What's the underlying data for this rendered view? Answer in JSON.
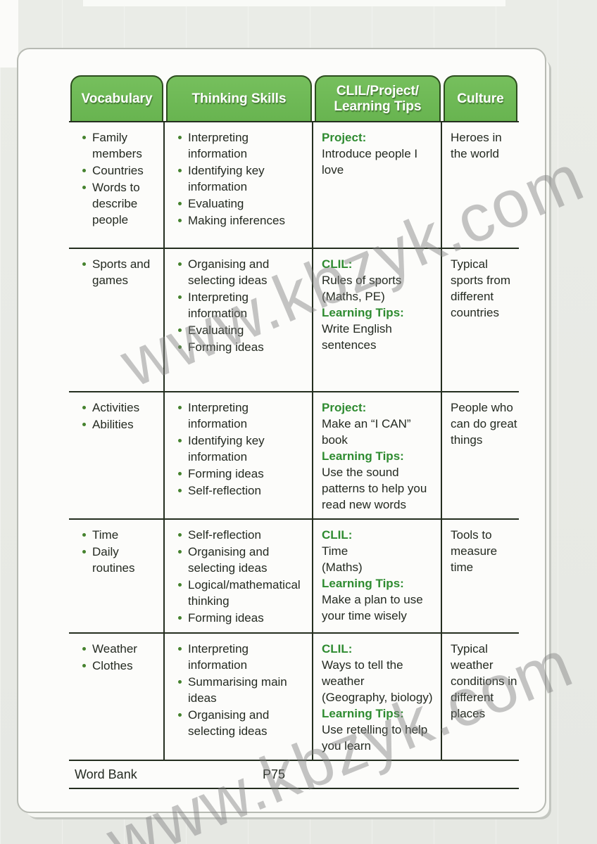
{
  "document": {
    "watermark_text": "www.kbzyk.com",
    "footer": {
      "word_bank_label": "Word Bank",
      "page_number": "P75"
    }
  },
  "colors": {
    "tab_green": "#68b450",
    "tab_green_light": "#76bf5d",
    "tab_border": "#2c4c1e",
    "label_green": "#2e8b30",
    "bullet_green": "#45822e",
    "line_dark": "#242e1f",
    "ink": "#242a21"
  },
  "table": {
    "columns": [
      "vocabulary",
      "thinking-skills",
      "clil-project-learning-tips",
      "culture"
    ],
    "headers": [
      {
        "lines": [
          "Vocabulary"
        ]
      },
      {
        "lines": [
          "Thinking Skills"
        ]
      },
      {
        "lines": [
          "CLIL/Project/",
          "Learning Tips"
        ]
      },
      {
        "lines": [
          "Culture"
        ]
      }
    ],
    "rows": [
      {
        "vocabulary": [
          "Family members",
          "Countries",
          "Words to describe people"
        ],
        "thinking_skills": [
          "Interpreting information",
          "Identifying key information",
          "Evaluating",
          "Making inferences"
        ],
        "clil": [
          {
            "label": "Project:",
            "text": "Introduce people I love"
          }
        ],
        "culture": "Heroes in the world"
      },
      {
        "vocabulary": [
          "Sports and games"
        ],
        "thinking_skills": [
          "Organising and selecting ideas",
          "Interpreting information",
          "Evaluating",
          "Forming ideas"
        ],
        "clil": [
          {
            "label": "CLIL:",
            "text": "Rules of sports\n(Maths, PE)"
          },
          {
            "label": "Learning Tips:",
            "text": "Write English sentences"
          }
        ],
        "culture": "Typical sports from different countries"
      },
      {
        "vocabulary": [
          "Activities",
          "Abilities"
        ],
        "thinking_skills": [
          "Interpreting information",
          "Identifying key information",
          "Forming ideas",
          "Self-reflection"
        ],
        "clil": [
          {
            "label": "Project:",
            "text": "Make an “I CAN” book"
          },
          {
            "label": "Learning Tips:",
            "text": "Use the sound patterns to help you read new words"
          }
        ],
        "culture": "People who can do great things"
      },
      {
        "vocabulary": [
          "Time",
          "Daily routines"
        ],
        "thinking_skills": [
          "Self-reflection",
          "Organising and selecting ideas",
          "Logical/mathematical thinking",
          "Forming ideas"
        ],
        "clil": [
          {
            "label": "CLIL:",
            "text": "Time\n(Maths)"
          },
          {
            "label": "Learning Tips:",
            "text": "Make a plan to use your time wisely"
          }
        ],
        "culture": "Tools to measure time"
      },
      {
        "vocabulary": [
          "Weather",
          "Clothes"
        ],
        "thinking_skills": [
          "Interpreting information",
          "Summarising main ideas",
          "Organising and selecting ideas"
        ],
        "clil": [
          {
            "label": "CLIL:",
            "text": "Ways to tell the weather\n(Geography, biology)"
          },
          {
            "label": "Learning Tips:",
            "text": "Use retelling to help you learn"
          }
        ],
        "culture": "Typical weather conditions in different places"
      }
    ]
  }
}
